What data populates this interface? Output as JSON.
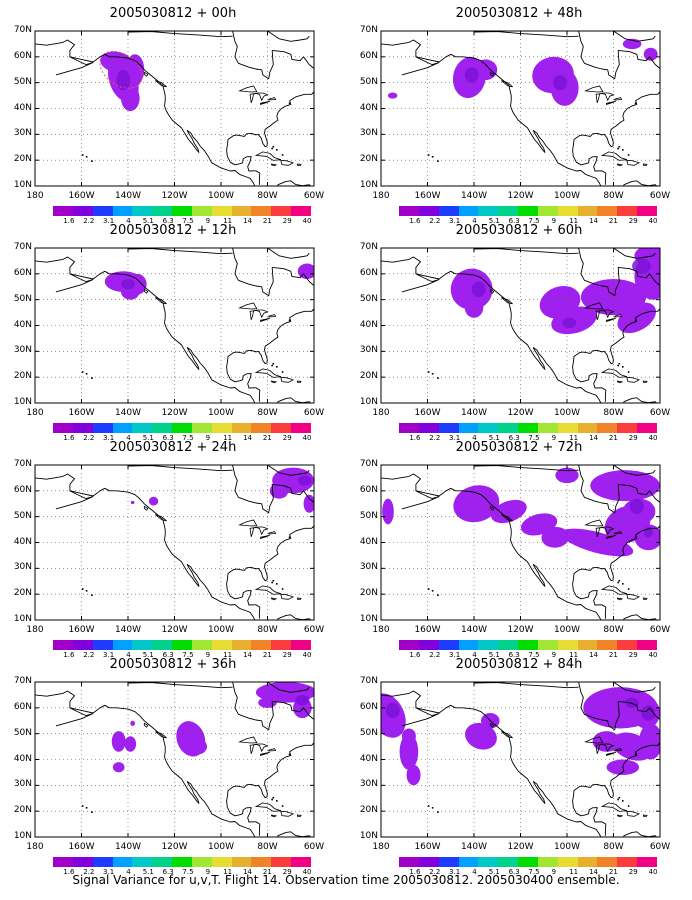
{
  "panels": [
    {
      "title": "2005030812 + 00h"
    },
    {
      "title": "2005030812 + 48h"
    },
    {
      "title": "2005030812 + 12h"
    },
    {
      "title": "2005030812 + 60h"
    },
    {
      "title": "2005030812 + 24h"
    },
    {
      "title": "2005030812 + 72h"
    },
    {
      "title": "2005030812 + 36h"
    },
    {
      "title": "2005030812 + 84h"
    }
  ],
  "y_ticks": [
    "70N",
    "60N",
    "50N",
    "40N",
    "30N",
    "20N",
    "10N"
  ],
  "x_ticks": [
    "180",
    "160W",
    "140W",
    "120W",
    "100W",
    "80W",
    "60W"
  ],
  "colorbar": {
    "labels": [
      "1.6",
      "2.2",
      "3.1",
      "4",
      "5.1",
      "6.3",
      "7.5",
      "9",
      "11",
      "14",
      "21",
      "29",
      "40"
    ],
    "colors": [
      "#a000c8",
      "#8200dc",
      "#1e3cff",
      "#00a0ff",
      "#00c8c8",
      "#00d28c",
      "#00dc00",
      "#a0e632",
      "#e6dc32",
      "#e6af2d",
      "#f08228",
      "#fa3c3c",
      "#f00082"
    ]
  },
  "footer": "Signal Variance for u,v,T. Flight 14. Observation time 2005030812. 2005030400 ensemble.",
  "colors": {
    "shade": "#a020f0",
    "shade_dark": "#7d12d8",
    "grid": "#555555"
  }
}
